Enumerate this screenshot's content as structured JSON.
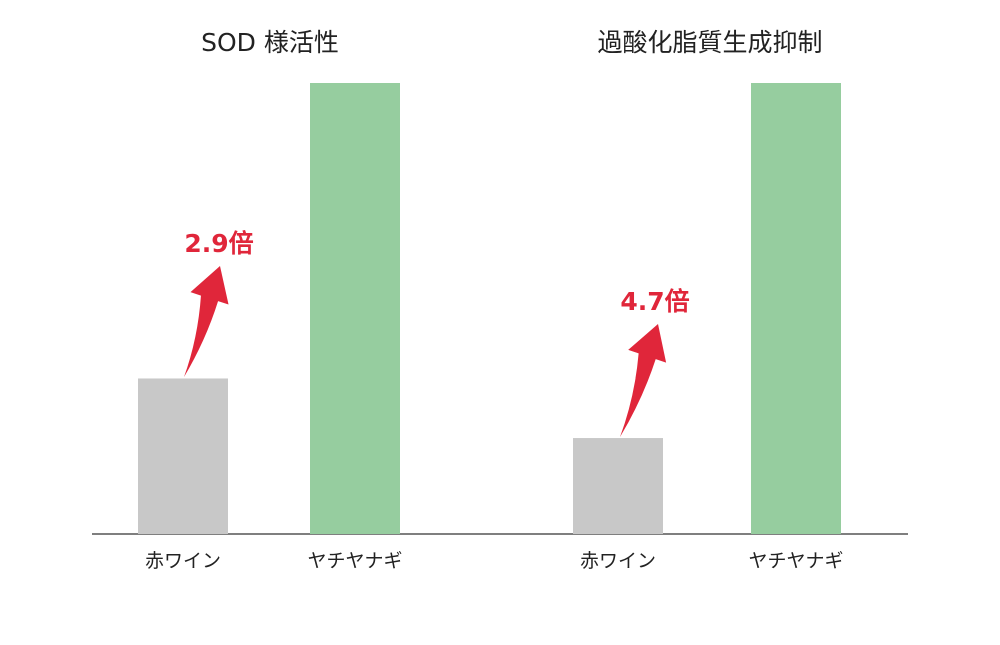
{
  "chart_data": [
    {
      "type": "bar",
      "title": "SOD 様活性",
      "categories": [
        "赤ワイン",
        "ヤチヤナギ"
      ],
      "values": [
        1,
        2.9
      ],
      "colors": [
        "#c8c8c8",
        "#96cd9f"
      ],
      "annotation": {
        "text": "2.9倍",
        "color": "#e0263a"
      },
      "grid": false
    },
    {
      "type": "bar",
      "title": "過酸化脂質生成抑制",
      "categories": [
        "赤ワイン",
        "ヤチヤナギ"
      ],
      "values": [
        1,
        4.7
      ],
      "colors": [
        "#c8c8c8",
        "#96cd9f"
      ],
      "annotation": {
        "text": "4.7倍",
        "color": "#e0263a"
      },
      "grid": false
    }
  ]
}
